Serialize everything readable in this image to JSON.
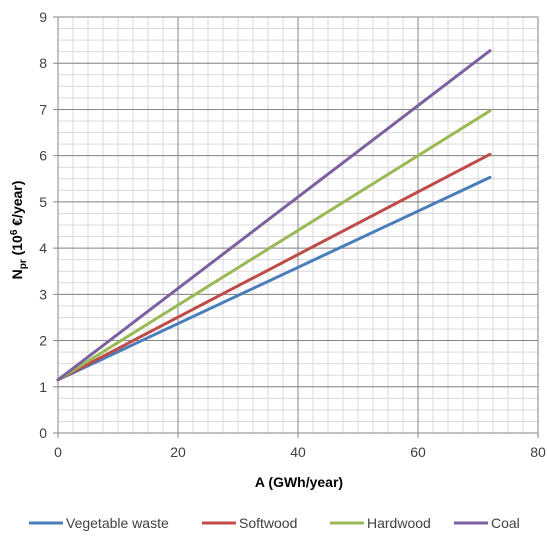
{
  "chart_data": {
    "type": "line",
    "title": "",
    "xlabel": "A (GWh/year)",
    "ylabel": {
      "main": "N",
      "sub": "pr",
      "open": " (10",
      "sup": "6",
      "close": " €/year)"
    },
    "xlim": [
      0,
      80
    ],
    "ylim": [
      0,
      9
    ],
    "x_ticks": [
      0,
      20,
      40,
      60,
      80
    ],
    "y_ticks": [
      0,
      1,
      2,
      3,
      4,
      5,
      6,
      7,
      8,
      9
    ],
    "x_minor_step": 2.5,
    "y_minor_step": 0.25,
    "grid": true,
    "legend_position": "bottom",
    "series": [
      {
        "name": "Vegetable waste",
        "color": "#4a7ebb",
        "x": [
          0,
          72
        ],
        "y": [
          1.15,
          5.53
        ]
      },
      {
        "name": "Softwood",
        "color": "#be4b48",
        "x": [
          0,
          72
        ],
        "y": [
          1.15,
          6.03
        ]
      },
      {
        "name": "Hardwood",
        "color": "#98b954",
        "x": [
          0,
          72
        ],
        "y": [
          1.15,
          6.97
        ]
      },
      {
        "name": "Coal",
        "color": "#7d60a0",
        "x": [
          0,
          72
        ],
        "y": [
          1.15,
          8.27
        ]
      }
    ]
  }
}
